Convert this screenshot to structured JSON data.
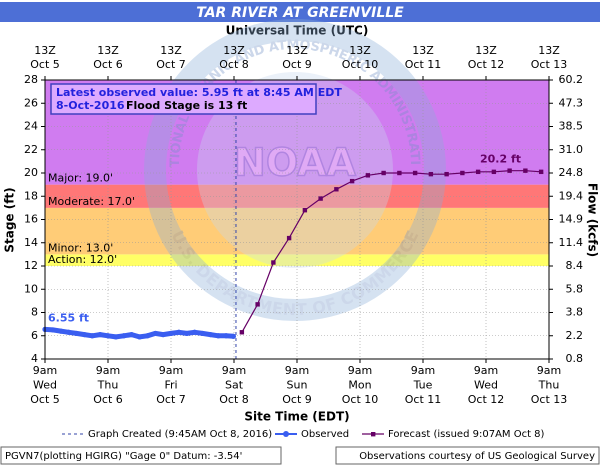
{
  "chart_data": {
    "type": "hydrograph",
    "title": "TAR RIVER AT GREENVILLE",
    "top_axis_label": "Universal Time (UTC)",
    "x_axis_label": "Site Time (EDT)",
    "y_axis_label": "Stage (ft)",
    "y2_axis_label": "Flow (kcfs)",
    "xlim": [
      "2016-10-05T09:00",
      "2016-10-13T09:00"
    ],
    "xticks": [
      {
        "value": "2016-10-05T09:00",
        "label": [
          "9am",
          "Wed",
          "Oct 5"
        ],
        "top_label": [
          "13Z",
          "Oct 5"
        ]
      },
      {
        "value": "2016-10-06T09:00",
        "label": [
          "9am",
          "Thu",
          "Oct 6"
        ],
        "top_label": [
          "13Z",
          "Oct 6"
        ]
      },
      {
        "value": "2016-10-07T09:00",
        "label": [
          "9am",
          "Fri",
          "Oct 7"
        ],
        "top_label": [
          "13Z",
          "Oct 7"
        ]
      },
      {
        "value": "2016-10-08T09:00",
        "label": [
          "9am",
          "Sat",
          "Oct 8"
        ],
        "top_label": [
          "13Z",
          "Oct 8"
        ]
      },
      {
        "value": "2016-10-09T09:00",
        "label": [
          "9am",
          "Sun",
          "Oct 9"
        ],
        "top_label": [
          "13Z",
          "Oct 9"
        ]
      },
      {
        "value": "2016-10-10T09:00",
        "label": [
          "9am",
          "Mon",
          "Oct 10"
        ],
        "top_label": [
          "13Z",
          "Oct 10"
        ]
      },
      {
        "value": "2016-10-11T09:00",
        "label": [
          "9am",
          "Tue",
          "Oct 11"
        ],
        "top_label": [
          "13Z",
          "Oct 11"
        ]
      },
      {
        "value": "2016-10-12T09:00",
        "label": [
          "9am",
          "Wed",
          "Oct 12"
        ],
        "top_label": [
          "13Z",
          "Oct 12"
        ]
      },
      {
        "value": "2016-10-13T09:00",
        "label": [
          "9am",
          "Thu",
          "Oct 13"
        ],
        "top_label": [
          "13Z",
          "Oct 13"
        ]
      }
    ],
    "ylim": [
      4,
      28
    ],
    "yticks": [
      4,
      6,
      8,
      10,
      12,
      14,
      16,
      18,
      20,
      22,
      24,
      26,
      28
    ],
    "y2ticks": [
      {
        "stage": 4,
        "flow": 0.8
      },
      {
        "stage": 6,
        "flow": 2.2
      },
      {
        "stage": 8,
        "flow": 3.8
      },
      {
        "stage": 10,
        "flow": 5.8
      },
      {
        "stage": 12,
        "flow": 8.4
      },
      {
        "stage": 14,
        "flow": 11.4
      },
      {
        "stage": 16,
        "flow": 14.9
      },
      {
        "stage": 18,
        "flow": 19.4
      },
      {
        "stage": 20,
        "flow": 24.8
      },
      {
        "stage": 22,
        "flow": 31,
        "label": "31.0"
      },
      {
        "stage": 24,
        "flow": 38.5
      },
      {
        "stage": 26,
        "flow": 47.3
      },
      {
        "stage": 28,
        "flow": 60.2
      }
    ],
    "grid": true,
    "flood_categories": [
      {
        "label": "Action: 12.0'",
        "stage": 12,
        "color": "#ffff66"
      },
      {
        "label": "Minor: 13.0'",
        "stage": 13,
        "color": "#ffcc77"
      },
      {
        "label": "Moderate: 17.0'",
        "stage": 17,
        "color": "#ff7777"
      },
      {
        "label": "Major: 19.0'",
        "stage": 19,
        "color": "#d07cf0"
      }
    ],
    "series": [
      {
        "name": "Observed",
        "color": "#3a5ef0",
        "x": [
          "2016-10-05T09:00",
          "2016-10-05T12:00",
          "2016-10-05T15:00",
          "2016-10-05T18:00",
          "2016-10-05T21:00",
          "2016-10-06T00:00",
          "2016-10-06T03:00",
          "2016-10-06T06:00",
          "2016-10-06T09:00",
          "2016-10-06T12:00",
          "2016-10-06T15:00",
          "2016-10-06T18:00",
          "2016-10-06T21:00",
          "2016-10-07T00:00",
          "2016-10-07T03:00",
          "2016-10-07T06:00",
          "2016-10-07T09:00",
          "2016-10-07T12:00",
          "2016-10-07T15:00",
          "2016-10-07T18:00",
          "2016-10-07T21:00",
          "2016-10-08T00:00",
          "2016-10-08T03:00",
          "2016-10-08T06:00",
          "2016-10-08T08:45"
        ],
        "values": [
          6.55,
          6.5,
          6.4,
          6.3,
          6.2,
          6.1,
          6.0,
          6.1,
          6.0,
          5.9,
          6.0,
          6.1,
          5.9,
          6.0,
          6.2,
          6.1,
          6.2,
          6.3,
          6.2,
          6.3,
          6.2,
          6.1,
          6.0,
          6.0,
          5.95
        ]
      },
      {
        "name": "Forecast (issued 9:07AM Oct 8)",
        "color": "#660066",
        "x": [
          "2016-10-08T12:00",
          "2016-10-08T18:00",
          "2016-10-09T00:00",
          "2016-10-09T06:00",
          "2016-10-09T12:00",
          "2016-10-09T18:00",
          "2016-10-10T00:00",
          "2016-10-10T06:00",
          "2016-10-10T12:00",
          "2016-10-10T18:00",
          "2016-10-11T00:00",
          "2016-10-11T06:00",
          "2016-10-11T12:00",
          "2016-10-11T18:00",
          "2016-10-12T00:00",
          "2016-10-12T06:00",
          "2016-10-12T12:00",
          "2016-10-12T18:00",
          "2016-10-13T00:00",
          "2016-10-13T06:00"
        ],
        "values": [
          6.3,
          8.7,
          12.3,
          14.4,
          16.8,
          17.8,
          18.6,
          19.3,
          19.8,
          20.0,
          20.0,
          20.0,
          19.9,
          19.9,
          20.0,
          20.1,
          20.1,
          20.2,
          20.2,
          20.1
        ]
      }
    ],
    "graph_created": {
      "x": "2016-10-08T09:45",
      "label": "Graph Created (9:45AM Oct 8, 2016)"
    },
    "annotations": {
      "first": "6.55 ft",
      "peak": "20.2 ft"
    },
    "notice": {
      "line1": "Latest observed value: 5.95 ft at 8:45 AM EDT",
      "date": "8-Oct-2016",
      "flood_stage": "Flood Stage is 13 ft"
    },
    "watermark": {
      "center": "NOAA",
      "top": "NATIONAL OCEANIC AND ATMOSPHERIC ADMINISTRATION",
      "bottom": "U.S. DEPARTMENT OF COMMERCE"
    },
    "footer": {
      "left": "PGVN7(plotting HGIRG) \"Gage 0\" Datum: -3.54'",
      "right": "Observations courtesy of US Geological Survey"
    }
  }
}
